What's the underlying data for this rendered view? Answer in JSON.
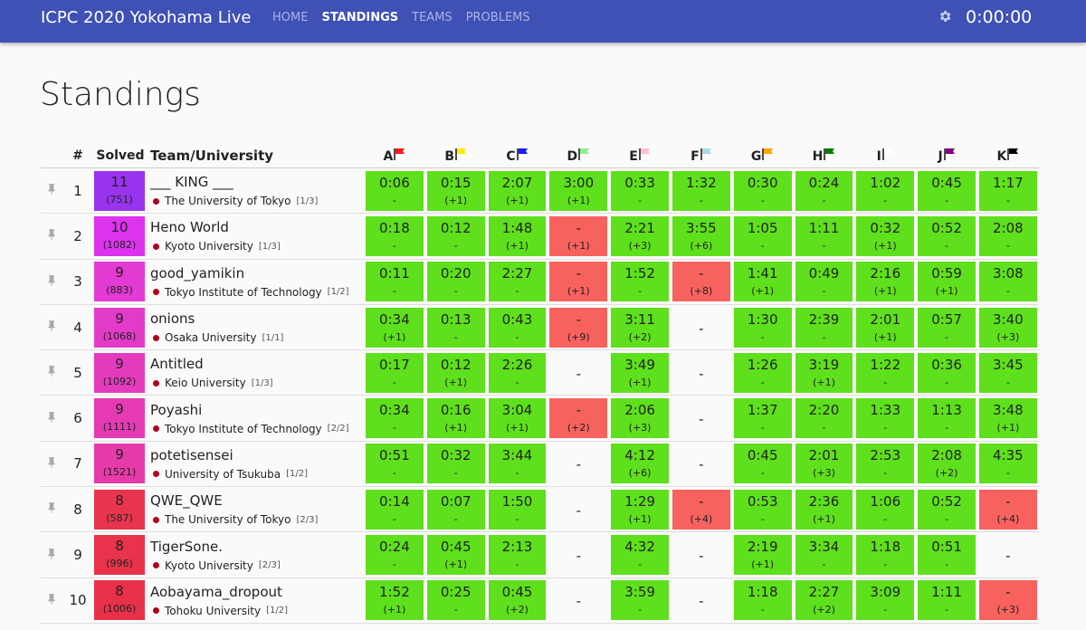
{
  "header": {
    "title": "ICPC 2020 Yokohama Live",
    "nav": [
      "HOME",
      "STANDINGS",
      "TEAMS",
      "PROBLEMS"
    ],
    "active_nav": 1,
    "clock": "0:00:00"
  },
  "page_title": "Standings",
  "table": {
    "columns": [
      "#",
      "Solved",
      "Team/University"
    ],
    "problems": [
      {
        "label": "A",
        "color": "#ff1a1a"
      },
      {
        "label": "B",
        "color": "#ffee00"
      },
      {
        "label": "C",
        "color": "#1a1aff"
      },
      {
        "label": "D",
        "color": "#90ee90"
      },
      {
        "label": "E",
        "color": "#ffc0cb"
      },
      {
        "label": "F",
        "color": "#add8e6"
      },
      {
        "label": "G",
        "color": "#ffa500"
      },
      {
        "label": "H",
        "color": "#008000"
      },
      {
        "label": "I",
        "color": "#ffffff"
      },
      {
        "label": "J",
        "color": "#800080"
      },
      {
        "label": "K",
        "color": "#000000"
      }
    ],
    "rows": [
      {
        "rank": "1",
        "solved": "11",
        "penalty": "(751)",
        "color": "#9933ee",
        "team": "___ KING ___",
        "university": "The University of Tokyo",
        "university_rank": "[1/3]",
        "cells": [
          [
            "0:06",
            "-"
          ],
          [
            "0:15",
            "(+1)"
          ],
          [
            "2:07",
            "(+1)"
          ],
          [
            "3:00",
            "(+1)"
          ],
          [
            "0:33",
            "-"
          ],
          [
            "1:32",
            "-"
          ],
          [
            "0:30",
            "-"
          ],
          [
            "0:24",
            "-"
          ],
          [
            "1:02",
            "-"
          ],
          [
            "0:45",
            "-"
          ],
          [
            "1:17",
            "-"
          ]
        ]
      },
      {
        "rank": "2",
        "solved": "10",
        "penalty": "(1082)",
        "color": "#dd33ee",
        "team": "Heno World",
        "university": "Kyoto University",
        "university_rank": "[1/3]",
        "cells": [
          [
            "0:18",
            "-"
          ],
          [
            "0:12",
            "-"
          ],
          [
            "1:48",
            "(+1)"
          ],
          [
            "-",
            "(+1)"
          ],
          [
            "2:21",
            "(+3)"
          ],
          [
            "3:55",
            "(+6)"
          ],
          [
            "1:05",
            "-"
          ],
          [
            "1:11",
            "-"
          ],
          [
            "0:32",
            "(+1)"
          ],
          [
            "0:52",
            "-"
          ],
          [
            "2:08",
            "-"
          ]
        ]
      },
      {
        "rank": "3",
        "solved": "9",
        "penalty": "(883)",
        "color": "#e23ad2",
        "team": "good_yamikin",
        "university": "Tokyo Institute of Technology",
        "university_rank": "[1/2]",
        "cells": [
          [
            "0:11",
            "-"
          ],
          [
            "0:20",
            "-"
          ],
          [
            "2:27",
            "-"
          ],
          [
            "-",
            "(+1)"
          ],
          [
            "1:52",
            "-"
          ],
          [
            "-",
            "(+8)"
          ],
          [
            "1:41",
            "(+1)"
          ],
          [
            "0:49",
            "-"
          ],
          [
            "2:16",
            "(+1)"
          ],
          [
            "0:59",
            "(+1)"
          ],
          [
            "3:08",
            "-"
          ]
        ]
      },
      {
        "rank": "4",
        "solved": "9",
        "penalty": "(1068)",
        "color": "#e33bc8",
        "team": "onions",
        "university": "Osaka University",
        "university_rank": "[1/1]",
        "cells": [
          [
            "0:34",
            "(+1)"
          ],
          [
            "0:13",
            "-"
          ],
          [
            "0:43",
            "-"
          ],
          [
            "-",
            "(+9)"
          ],
          [
            "3:11",
            "(+2)"
          ],
          [
            "-"
          ],
          [
            "1:30",
            "-"
          ],
          [
            "2:39",
            "-"
          ],
          [
            "2:01",
            "(+1)"
          ],
          [
            "0:57",
            "-"
          ],
          [
            "3:40",
            "(+3)"
          ]
        ]
      },
      {
        "rank": "5",
        "solved": "9",
        "penalty": "(1092)",
        "color": "#e43bbe",
        "team": "Antitled",
        "university": "Keio University",
        "university_rank": "[1/3]",
        "cells": [
          [
            "0:17",
            "-"
          ],
          [
            "0:12",
            "(+1)"
          ],
          [
            "2:26",
            "-"
          ],
          [
            "-"
          ],
          [
            "3:49",
            "(+1)"
          ],
          [
            "-"
          ],
          [
            "1:26",
            "-"
          ],
          [
            "3:19",
            "(+1)"
          ],
          [
            "1:22",
            "-"
          ],
          [
            "0:36",
            "-"
          ],
          [
            "3:45",
            "-"
          ]
        ]
      },
      {
        "rank": "6",
        "solved": "9",
        "penalty": "(1111)",
        "color": "#e53ab4",
        "team": "Poyashi",
        "university": "Tokyo Institute of Technology",
        "university_rank": "[2/2]",
        "cells": [
          [
            "0:34",
            "-"
          ],
          [
            "0:16",
            "(+1)"
          ],
          [
            "3:04",
            "(+1)"
          ],
          [
            "-",
            "(+2)"
          ],
          [
            "2:06",
            "(+3)"
          ],
          [
            "-"
          ],
          [
            "1:37",
            "-"
          ],
          [
            "2:20",
            "-"
          ],
          [
            "1:33",
            "-"
          ],
          [
            "1:13",
            "-"
          ],
          [
            "3:48",
            "(+1)"
          ]
        ]
      },
      {
        "rank": "7",
        "solved": "9",
        "penalty": "(1521)",
        "color": "#e63aa8",
        "team": "potetisensei",
        "university": "University of Tsukuba",
        "university_rank": "[1/2]",
        "cells": [
          [
            "0:51",
            "-"
          ],
          [
            "0:32",
            "-"
          ],
          [
            "3:44",
            "-"
          ],
          [
            "-"
          ],
          [
            "4:12",
            "(+6)"
          ],
          [
            "-"
          ],
          [
            "0:45",
            "-"
          ],
          [
            "2:01",
            "(+3)"
          ],
          [
            "2:53",
            "-"
          ],
          [
            "2:08",
            "(+2)"
          ],
          [
            "4:35",
            "-"
          ]
        ]
      },
      {
        "rank": "8",
        "solved": "8",
        "penalty": "(587)",
        "color": "#e8354e",
        "team": "QWE_QWE",
        "university": "The University of Tokyo",
        "university_rank": "[2/3]",
        "cells": [
          [
            "0:14",
            "-"
          ],
          [
            "0:07",
            "-"
          ],
          [
            "1:50",
            "-"
          ],
          [
            "-"
          ],
          [
            "1:29",
            "(+1)"
          ],
          [
            "-",
            "(+4)"
          ],
          [
            "0:53",
            "-"
          ],
          [
            "2:36",
            "(+1)"
          ],
          [
            "1:06",
            "-"
          ],
          [
            "0:52",
            "-"
          ],
          [
            "-",
            "(+4)"
          ]
        ]
      },
      {
        "rank": "9",
        "solved": "8",
        "penalty": "(996)",
        "color": "#e8334a",
        "team": "TigerSone.",
        "university": "Kyoto University",
        "university_rank": "[2/3]",
        "cells": [
          [
            "0:24",
            "-"
          ],
          [
            "0:45",
            "(+1)"
          ],
          [
            "2:13",
            "-"
          ],
          [
            "-"
          ],
          [
            "4:32",
            "-"
          ],
          [
            "-"
          ],
          [
            "2:19",
            "(+1)"
          ],
          [
            "3:34",
            "-"
          ],
          [
            "1:18",
            "-"
          ],
          [
            "0:51",
            "-"
          ],
          [
            "-"
          ]
        ]
      },
      {
        "rank": "10",
        "solved": "8",
        "penalty": "(1006)",
        "color": "#e83148",
        "team": "Aobayama_dropout",
        "university": "Tohoku University",
        "university_rank": "[1/2]",
        "cells": [
          [
            "1:52",
            "(+1)"
          ],
          [
            "0:25",
            "-"
          ],
          [
            "0:45",
            "(+2)"
          ],
          [
            "-"
          ],
          [
            "3:59",
            "-"
          ],
          [
            "-"
          ],
          [
            "1:18",
            "-"
          ],
          [
            "2:27",
            "(+2)"
          ],
          [
            "3:09",
            "-"
          ],
          [
            "1:11",
            "-"
          ],
          [
            "-",
            "(+3)"
          ]
        ]
      }
    ]
  }
}
